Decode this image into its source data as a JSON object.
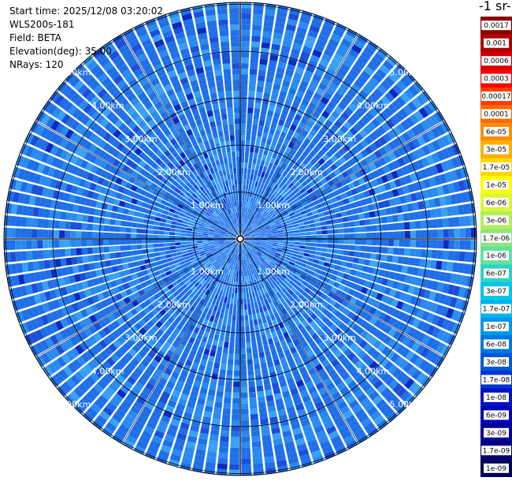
{
  "header": {
    "start_time": "Start time: 2025/12/08 03:20:02",
    "instrument": "WLS200s-181",
    "field": "Field: BETA",
    "elevation": "Elevation(deg): 35.00",
    "nrays": "NRays: 120"
  },
  "colorbar": {
    "units_label": "-1 sr-",
    "ticks": [
      "0.0017",
      "0.001",
      "0.0006",
      "0.0003",
      "0.00017",
      "0.0001",
      "6e-05",
      "3e-05",
      "1.7e-05",
      "1e-05",
      "6e-06",
      "3e-06",
      "1.7e-06",
      "1e-06",
      "6e-07",
      "3e-07",
      "1.7e-07",
      "1e-07",
      "6e-08",
      "3e-08",
      "1.7e-08",
      "1e-08",
      "6e-09",
      "3e-09",
      "1.7e-09",
      "1e-09"
    ],
    "colors": [
      "#8b0000",
      "#b00000",
      "#d40000",
      "#ff0000",
      "#ff3c00",
      "#ff6a00",
      "#ff8c00",
      "#ffb000",
      "#ffd700",
      "#ffff00",
      "#d9f53a",
      "#b4ec5a",
      "#8fe47f",
      "#5ee3a0",
      "#2fd3c6",
      "#00c5e8",
      "#00b2ee",
      "#0098ea",
      "#0078e0",
      "#0058d6",
      "#0034d0",
      "#0010c8",
      "#0000b4",
      "#00009a",
      "#000078",
      "#000055"
    ]
  },
  "chart_data": {
    "type": "ppi",
    "field": "BETA",
    "elevation_deg": 35.0,
    "nrays": 120,
    "max_range_km": 5.0,
    "range_rings_km": [
      1,
      2,
      3,
      4,
      5
    ],
    "ring_labels": [
      "1.00km",
      "2.00km",
      "3.00km",
      "4.00km",
      "5.00km"
    ],
    "dominant_value_range": [
      "3e-08",
      "1e-07"
    ],
    "dominant_colors": [
      "#1f6fe8",
      "#2a8af0",
      "#3aa0f5",
      "#1a4fd8",
      "#0a2ac0"
    ]
  }
}
